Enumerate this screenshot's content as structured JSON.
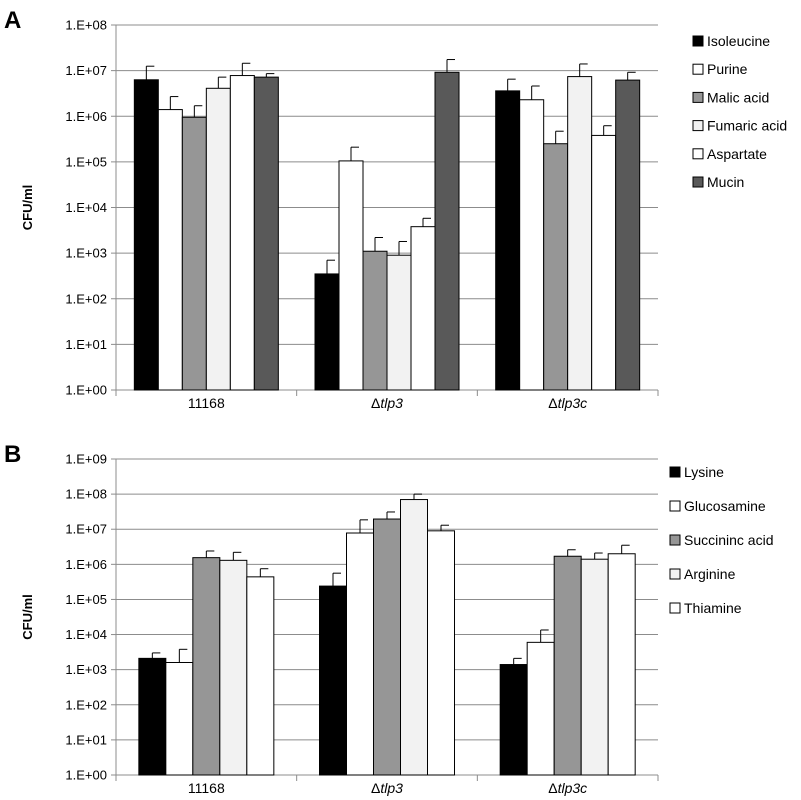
{
  "chart_data": [
    {
      "type": "bar",
      "panel_label": "A",
      "ylabel": "CFU/ml",
      "yscale": "log",
      "ylim": [
        1,
        100000000
      ],
      "yticks": [
        "1.E+00",
        "1.E+01",
        "1.E+02",
        "1.E+03",
        "1.E+04",
        "1.E+05",
        "1.E+06",
        "1.E+07",
        "1.E+08"
      ],
      "categories": [
        {
          "prefix": "",
          "italic": "11168"
        },
        {
          "prefix": "Δ",
          "italic": "tlp3"
        },
        {
          "prefix": "Δ",
          "italic": "tlp3c"
        }
      ],
      "grid": true,
      "legend_position": "right",
      "series": [
        {
          "name": "Isoleucine",
          "color": "#000000",
          "values": [
            6300000,
            350,
            3600000
          ],
          "errors": [
            12500000,
            700,
            6500000
          ]
        },
        {
          "name": "Purine",
          "color": "#ffffff",
          "values": [
            1400000,
            105000,
            2300000
          ],
          "errors": [
            2700000,
            210000,
            4600000
          ]
        },
        {
          "name": "Malic acid",
          "color": "#969696",
          "values": [
            950000,
            1100,
            250000
          ],
          "errors": [
            1700000,
            2200,
            470000
          ]
        },
        {
          "name": "Fumaric acid",
          "color": "#f2f2f2",
          "values": [
            4100000,
            900,
            7400000
          ],
          "errors": [
            7200000,
            1800,
            14000000
          ]
        },
        {
          "name": "Aspartate",
          "color": "#ffffff",
          "values": [
            7800000,
            3800,
            380000
          ],
          "errors": [
            14500000,
            5800,
            620000
          ]
        },
        {
          "name": "Mucin",
          "color": "#595959",
          "values": [
            7200000,
            9200000,
            6200000
          ],
          "errors": [
            8600000,
            17500000,
            9200000
          ]
        }
      ]
    },
    {
      "type": "bar",
      "panel_label": "B",
      "ylabel": "CFU/ml",
      "yscale": "log",
      "ylim": [
        1,
        1000000000
      ],
      "yticks": [
        "1.E+00",
        "1.E+01",
        "1.E+02",
        "1.E+03",
        "1.E+04",
        "1.E+05",
        "1.E+06",
        "1.E+07",
        "1.E+08",
        "1.E+09"
      ],
      "categories": [
        {
          "prefix": "",
          "italic": "11168"
        },
        {
          "prefix": "Δ",
          "italic": "tlp3"
        },
        {
          "prefix": "Δ",
          "italic": "tlp3c"
        }
      ],
      "grid": true,
      "legend_position": "right",
      "series": [
        {
          "name": "Lysine",
          "color": "#000000",
          "values": [
            2100,
            240000,
            1400
          ],
          "errors": [
            3000,
            560000,
            2100
          ]
        },
        {
          "name": "Glucosamine",
          "color": "#ffffff",
          "values": [
            1600,
            7800000,
            6000
          ],
          "errors": [
            3800,
            18500000,
            13500
          ]
        },
        {
          "name": "Succininc acid",
          "color": "#969696",
          "values": [
            1550000,
            19500000,
            1700000
          ],
          "errors": [
            2400000,
            31000000,
            2600000
          ]
        },
        {
          "name": "Arginine",
          "color": "#f2f2f2",
          "values": [
            1300000,
            70000000,
            1400000
          ],
          "errors": [
            2200000,
            100000000,
            2100000
          ]
        },
        {
          "name": "Thiamine",
          "color": "#ffffff",
          "values": [
            440000,
            9000000,
            2000000
          ],
          "errors": [
            750000,
            13000000,
            3500000
          ]
        }
      ]
    }
  ]
}
